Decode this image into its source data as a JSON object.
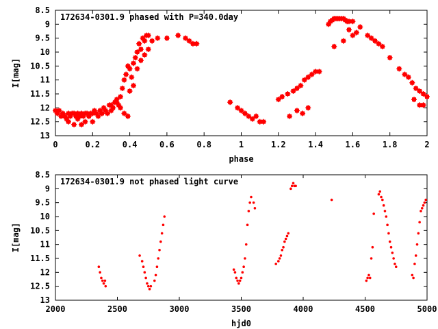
{
  "colors": {
    "points": "#ff0000",
    "axes": "#000000",
    "background": "#ffffff"
  },
  "chart_data": [
    {
      "type": "scatter",
      "title": "172634-0301.9 phased with P=340.0day",
      "xlabel": "phase",
      "ylabel": "I[mag]",
      "xlim": [
        0,
        2
      ],
      "ylim": [
        8.5,
        13
      ],
      "y_inverted": true,
      "xticks": [
        "0",
        "0.2",
        "0.4",
        "0.6",
        "0.8",
        "1",
        "1.2",
        "1.4",
        "1.6",
        "1.8",
        "2"
      ],
      "yticks": [
        "8.5",
        "9",
        "9.5",
        "10",
        "10.5",
        "11",
        "11.5",
        "12",
        "12.5",
        "13"
      ],
      "marker": "star",
      "x": [
        0.0,
        0.01,
        0.02,
        0.03,
        0.04,
        0.05,
        0.06,
        0.07,
        0.08,
        0.09,
        0.1,
        0.11,
        0.12,
        0.13,
        0.14,
        0.15,
        0.16,
        0.17,
        0.18,
        0.19,
        0.2,
        0.21,
        0.22,
        0.23,
        0.24,
        0.25,
        0.26,
        0.27,
        0.28,
        0.29,
        0.3,
        0.31,
        0.32,
        0.33,
        0.34,
        0.35,
        0.36,
        0.37,
        0.38,
        0.39,
        0.4,
        0.41,
        0.42,
        0.43,
        0.44,
        0.45,
        0.46,
        0.47,
        0.48,
        0.49,
        0.5,
        0.52,
        0.55,
        0.6,
        0.66,
        0.7,
        0.72,
        0.74,
        0.76,
        0.05,
        0.07,
        0.1,
        0.12,
        0.14,
        0.16,
        0.18,
        0.2,
        0.25,
        0.3,
        0.33,
        0.35,
        0.37,
        0.39,
        0.4,
        0.42,
        0.44,
        0.46,
        0.48,
        0.5,
        0.94,
        0.98,
        1.0,
        1.02,
        1.04,
        1.06,
        1.08,
        1.1,
        1.12,
        1.2,
        1.22,
        1.25,
        1.28,
        1.3,
        1.32,
        1.34,
        1.36,
        1.38,
        1.4,
        1.42,
        1.26,
        1.3,
        1.33,
        1.36,
        1.47,
        1.48,
        1.49,
        1.5,
        1.51,
        1.52,
        1.53,
        1.54,
        1.55,
        1.56,
        1.57,
        1.58,
        1.6,
        1.5,
        1.55,
        1.6,
        1.62,
        1.68,
        1.7,
        1.72,
        1.74,
        1.76,
        1.8,
        1.85,
        1.88,
        1.9,
        1.92,
        1.94,
        1.96,
        1.98,
        2.0,
        1.93,
        1.96,
        1.98,
        1.64,
        1.58
      ],
      "y": [
        12.1,
        12.2,
        12.1,
        12.3,
        12.2,
        12.3,
        12.4,
        12.2,
        12.3,
        12.2,
        12.2,
        12.3,
        12.2,
        12.3,
        12.2,
        12.3,
        12.2,
        12.2,
        12.3,
        12.2,
        12.2,
        12.1,
        12.2,
        12.3,
        12.1,
        12.2,
        12.0,
        12.1,
        12.2,
        11.9,
        11.9,
        12.0,
        11.8,
        11.7,
        11.9,
        11.6,
        11.3,
        11.0,
        10.8,
        10.5,
        10.6,
        10.9,
        10.4,
        10.2,
        10.0,
        9.7,
        9.9,
        9.5,
        9.6,
        9.4,
        9.4,
        9.6,
        9.5,
        9.5,
        9.4,
        9.5,
        9.6,
        9.7,
        9.7,
        12.3,
        12.5,
        12.6,
        12.4,
        12.6,
        12.5,
        12.3,
        12.5,
        12.2,
        12.1,
        11.8,
        12.0,
        12.2,
        12.3,
        11.4,
        11.2,
        10.6,
        10.3,
        10.1,
        9.9,
        11.8,
        12.0,
        12.1,
        12.2,
        12.3,
        12.4,
        12.3,
        12.5,
        12.5,
        11.7,
        11.6,
        11.5,
        11.4,
        11.3,
        11.2,
        11.0,
        10.9,
        10.8,
        10.7,
        10.7,
        12.3,
        12.1,
        12.2,
        12.0,
        9.0,
        8.9,
        8.85,
        8.8,
        8.8,
        8.8,
        8.8,
        8.8,
        8.8,
        8.85,
        8.9,
        8.9,
        8.9,
        9.8,
        9.6,
        9.4,
        9.3,
        9.4,
        9.5,
        9.6,
        9.7,
        9.8,
        10.2,
        10.6,
        10.8,
        10.9,
        11.1,
        11.3,
        11.4,
        11.5,
        11.6,
        11.7,
        11.9,
        11.9,
        9.1,
        9.2
      ]
    },
    {
      "type": "scatter",
      "title": "172634-0301.9 not phased light curve",
      "xlabel": "hjd0",
      "ylabel": "I[mag]",
      "xlim": [
        2000,
        5000
      ],
      "ylim": [
        8.5,
        13
      ],
      "y_inverted": true,
      "xticks": [
        "2000",
        "2500",
        "3000",
        "3500",
        "4000",
        "4500",
        "5000"
      ],
      "yticks": [
        "8.5",
        "9",
        "9.5",
        "10",
        "10.5",
        "11",
        "11.5",
        "12",
        "12.5",
        "13"
      ],
      "marker": "dot",
      "x": [
        2350,
        2360,
        2370,
        2380,
        2390,
        2400,
        2405,
        2680,
        2700,
        2710,
        2720,
        2730,
        2740,
        2750,
        2760,
        2770,
        2800,
        2810,
        2820,
        2830,
        2840,
        2850,
        2860,
        2870,
        2880,
        3440,
        3450,
        3460,
        3470,
        3480,
        3490,
        3500,
        3510,
        3520,
        3530,
        3540,
        3550,
        3560,
        3570,
        3580,
        3600,
        3610,
        3780,
        3800,
        3810,
        3820,
        3830,
        3840,
        3850,
        3860,
        3870,
        3880,
        3900,
        3910,
        3920,
        3930,
        3940,
        4230,
        4510,
        4520,
        4530,
        4540,
        4550,
        4560,
        4570,
        4610,
        4620,
        4630,
        4640,
        4650,
        4660,
        4670,
        4680,
        4690,
        4700,
        4710,
        4720,
        4730,
        4740,
        4750,
        4880,
        4890,
        4900,
        4910,
        4920,
        4930,
        4940,
        4950,
        4960,
        4970,
        4980,
        4990
      ],
      "y": [
        11.8,
        12.0,
        12.2,
        12.3,
        12.4,
        12.3,
        12.5,
        11.4,
        11.6,
        11.8,
        12.0,
        12.2,
        12.4,
        12.5,
        12.6,
        12.5,
        12.3,
        12.1,
        11.8,
        11.5,
        11.2,
        10.9,
        10.6,
        10.3,
        10.0,
        11.9,
        12.0,
        12.2,
        12.3,
        12.4,
        12.3,
        12.2,
        12.0,
        11.8,
        11.5,
        11.0,
        10.3,
        9.8,
        9.5,
        9.3,
        9.5,
        9.7,
        11.7,
        11.6,
        11.5,
        11.4,
        11.2,
        11.1,
        10.9,
        10.8,
        10.7,
        10.6,
        9.0,
        8.9,
        8.8,
        8.9,
        8.9,
        9.4,
        12.3,
        12.2,
        12.1,
        12.2,
        11.5,
        11.1,
        9.9,
        9.2,
        9.1,
        9.3,
        9.4,
        9.6,
        9.8,
        10.0,
        10.3,
        10.6,
        10.9,
        11.1,
        11.3,
        11.5,
        11.7,
        11.8,
        12.1,
        12.2,
        11.7,
        11.4,
        11.0,
        10.6,
        10.2,
        9.8,
        9.7,
        9.6,
        9.5,
        9.4
      ]
    }
  ]
}
